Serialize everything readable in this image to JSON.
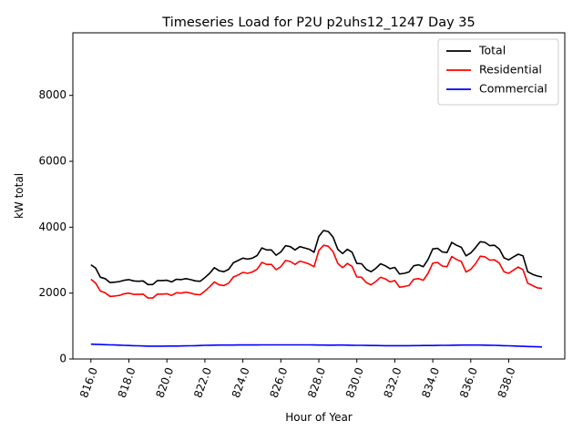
{
  "chart_data": {
    "type": "line",
    "title": "Timeseries Load for P2U p2uhs12_1247  Day 35",
    "xlabel": "Hour of Year",
    "ylabel": "kW total",
    "xlim": [
      815.05,
      840.95
    ],
    "ylim": [
      0,
      9900
    ],
    "xticks": [
      816,
      818,
      820,
      822,
      824,
      826,
      828,
      830,
      832,
      834,
      836,
      838
    ],
    "xtick_labels": [
      "816.0",
      "818.0",
      "820.0",
      "822.0",
      "824.0",
      "826.0",
      "828.0",
      "830.0",
      "832.0",
      "834.0",
      "836.0",
      "838.0"
    ],
    "yticks": [
      0,
      2000,
      4000,
      6000,
      8000
    ],
    "ytick_labels": [
      "0",
      "2000",
      "4000",
      "6000",
      "8000"
    ],
    "legend_position": "top-right",
    "x": [
      816.0,
      816.25,
      816.5,
      816.75,
      817.0,
      817.25,
      817.5,
      817.75,
      818.0,
      818.25,
      818.5,
      818.75,
      819.0,
      819.25,
      819.5,
      819.75,
      820.0,
      820.25,
      820.5,
      820.75,
      821.0,
      821.25,
      821.5,
      821.75,
      822.0,
      822.25,
      822.5,
      822.75,
      823.0,
      823.25,
      823.5,
      823.75,
      824.0,
      824.25,
      824.5,
      824.75,
      825.0,
      825.25,
      825.5,
      825.75,
      826.0,
      826.25,
      826.5,
      826.75,
      827.0,
      827.25,
      827.5,
      827.75,
      828.0,
      828.25,
      828.5,
      828.75,
      829.0,
      829.25,
      829.5,
      829.75,
      830.0,
      830.25,
      830.5,
      830.75,
      831.0,
      831.25,
      831.5,
      831.75,
      832.0,
      832.25,
      832.5,
      832.75,
      833.0,
      833.25,
      833.5,
      833.75,
      834.0,
      834.25,
      834.5,
      834.75,
      835.0,
      835.25,
      835.5,
      835.75,
      836.0,
      836.25,
      836.5,
      836.75,
      837.0,
      837.25,
      837.5,
      837.75,
      838.0,
      838.25,
      838.5,
      838.75,
      839.0,
      839.25,
      839.5,
      839.75
    ],
    "series": [
      {
        "name": "Total",
        "color": "#000000",
        "values": [
          2860,
          2760,
          2480,
          2440,
          2320,
          2330,
          2350,
          2390,
          2410,
          2370,
          2360,
          2370,
          2260,
          2260,
          2380,
          2380,
          2390,
          2340,
          2420,
          2410,
          2440,
          2410,
          2370,
          2360,
          2470,
          2600,
          2770,
          2680,
          2650,
          2720,
          2920,
          2990,
          3060,
          3030,
          3060,
          3140,
          3370,
          3310,
          3310,
          3150,
          3250,
          3440,
          3410,
          3310,
          3410,
          3370,
          3330,
          3240,
          3720,
          3900,
          3870,
          3700,
          3330,
          3200,
          3330,
          3240,
          2900,
          2890,
          2720,
          2650,
          2750,
          2890,
          2830,
          2740,
          2780,
          2580,
          2600,
          2640,
          2830,
          2860,
          2800,
          3020,
          3340,
          3360,
          3250,
          3230,
          3540,
          3450,
          3390,
          3130,
          3220,
          3380,
          3560,
          3540,
          3440,
          3450,
          3340,
          3070,
          3010,
          3100,
          3180,
          3130,
          2650,
          2570,
          2520,
          2490
        ]
      },
      {
        "name": "Residential",
        "color": "#ff0000",
        "values": [
          2420,
          2300,
          2060,
          2010,
          1900,
          1910,
          1930,
          1980,
          2000,
          1960,
          1960,
          1970,
          1850,
          1850,
          1970,
          1970,
          1980,
          1930,
          2010,
          2000,
          2030,
          2000,
          1960,
          1950,
          2060,
          2190,
          2340,
          2250,
          2230,
          2300,
          2490,
          2550,
          2630,
          2600,
          2640,
          2720,
          2930,
          2870,
          2870,
          2710,
          2800,
          2990,
          2960,
          2870,
          2970,
          2930,
          2880,
          2800,
          3290,
          3450,
          3420,
          3260,
          2900,
          2770,
          2900,
          2810,
          2490,
          2480,
          2320,
          2250,
          2350,
          2480,
          2430,
          2340,
          2380,
          2180,
          2200,
          2230,
          2420,
          2440,
          2390,
          2600,
          2910,
          2930,
          2820,
          2800,
          3110,
          3020,
          2960,
          2640,
          2720,
          2890,
          3120,
          3100,
          3000,
          3010,
          2910,
          2650,
          2600,
          2700,
          2790,
          2710,
          2300,
          2230,
          2160,
          2140
        ]
      },
      {
        "name": "Commercial",
        "color": "#0000ff",
        "values": [
          450,
          445,
          440,
          435,
          430,
          425,
          420,
          415,
          410,
          405,
          400,
          395,
          390,
          390,
          390,
          390,
          392,
          392,
          392,
          395,
          398,
          400,
          405,
          410,
          415,
          418,
          420,
          422,
          422,
          422,
          424,
          425,
          426,
          426,
          427,
          427,
          428,
          429,
          430,
          430,
          430,
          430,
          430,
          430,
          430,
          430,
          428,
          426,
          424,
          422,
          420,
          420,
          422,
          422,
          420,
          418,
          416,
          414,
          412,
          410,
          408,
          406,
          404,
          404,
          404,
          404,
          404,
          405,
          406,
          407,
          408,
          409,
          410,
          412,
          414,
          416,
          418,
          420,
          422,
          422,
          422,
          422,
          422,
          420,
          418,
          415,
          410,
          405,
          400,
          395,
          390,
          385,
          380,
          375,
          370,
          365
        ]
      }
    ]
  }
}
